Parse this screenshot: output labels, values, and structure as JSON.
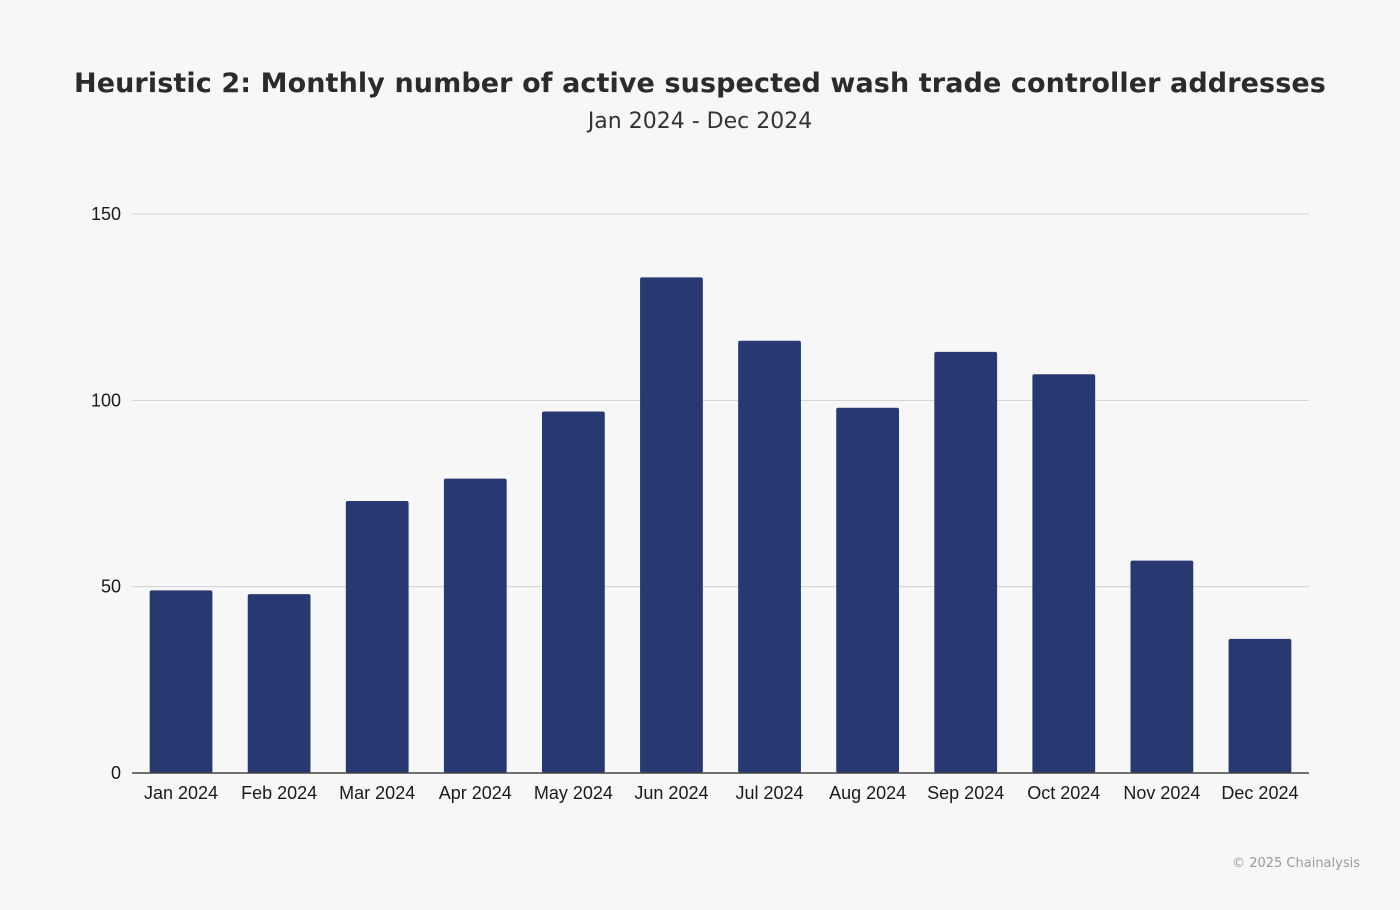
{
  "header": {
    "title": "Heuristic 2: Monthly number of active suspected wash trade controller addresses",
    "subtitle": "Jan 2024 - Dec 2024"
  },
  "footer": {
    "copyright": "© 2025 Chainalysis"
  },
  "chart_data": {
    "type": "bar",
    "title": "Heuristic 2: Monthly number of active suspected wash trade controller addresses",
    "subtitle": "Jan 2024 - Dec 2024",
    "xlabel": "",
    "ylabel": "",
    "categories": [
      "Jan 2024",
      "Feb 2024",
      "Mar 2024",
      "Apr 2024",
      "May 2024",
      "Jun 2024",
      "Jul 2024",
      "Aug 2024",
      "Sep 2024",
      "Oct 2024",
      "Nov 2024",
      "Dec 2024"
    ],
    "values": [
      49,
      48,
      73,
      79,
      97,
      133,
      116,
      98,
      113,
      107,
      57,
      36
    ],
    "ylim": [
      0,
      150
    ],
    "yticks": [
      0,
      50,
      100,
      150
    ],
    "grid": true,
    "legend": "none",
    "bar_color": "#283870"
  }
}
